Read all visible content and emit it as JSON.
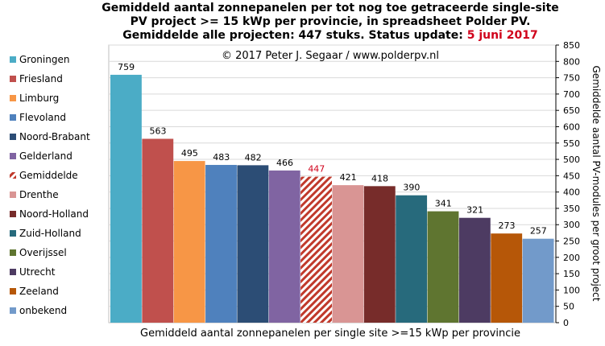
{
  "chart_data": {
    "type": "bar",
    "title_lines": [
      "Gemiddeld aantal zonnepanelen per tot nog toe getraceerde single-site",
      "PV project >= 15 kWp per provincie, in spreadsheet Polder PV.",
      "Gemiddelde alle projecten: 447 stuks. Status update: "
    ],
    "title_date": "5 juni 2017",
    "copyright": "© 2017 Peter J. Segaar / www.polderpv.nl",
    "xlabel": "Gemiddeld aantal zonnepanelen per single site >=15 kWp per provincie",
    "ylabel": "Gemiddelde aantal PV-modules per groot project",
    "ylim": [
      0,
      850
    ],
    "ytick_step": 50,
    "grid": true,
    "legend_position": "left",
    "categories": [
      "Groningen",
      "Friesland",
      "Limburg",
      "Flevoland",
      "Noord-Brabant",
      "Gelderland",
      "Gemiddelde",
      "Drenthe",
      "Noord-Holland",
      "Zuid-Holland",
      "Overijssel",
      "Utrecht",
      "Zeeland",
      "onbekend"
    ],
    "values": [
      759,
      563,
      495,
      483,
      482,
      466,
      447,
      421,
      418,
      390,
      341,
      321,
      273,
      257
    ],
    "colors": [
      "#4bacc6",
      "#c0504d",
      "#f79646",
      "#4f81bd",
      "#2c4d75",
      "#8064a2",
      "#c0392b",
      "#d99594",
      "#772c2a",
      "#276a7c",
      "#5f7530",
      "#4d3b62",
      "#b65708",
      "#729aca"
    ],
    "hatched_index": 6
  }
}
